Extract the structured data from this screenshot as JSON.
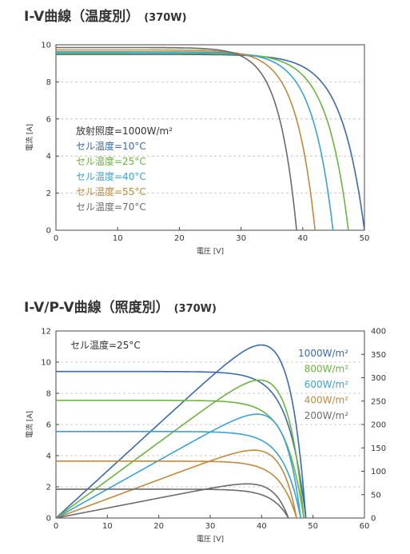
{
  "charts": [
    {
      "title_main": "I-V曲線（温度別）",
      "title_suffix": "(370W)",
      "chart_data": {
        "type": "line",
        "xlabel": "電圧 [V]",
        "ylabel": "電流 [A]",
        "xlim": [
          0,
          50
        ],
        "ylim": [
          0,
          10
        ],
        "xticks": [
          0,
          10,
          20,
          30,
          40,
          50
        ],
        "yticks": [
          0,
          2,
          4,
          6,
          8,
          10
        ],
        "grid": "horizontal-dashed",
        "annotation": "放射照度=1000W/m²",
        "legend_placement": "lower-left",
        "series": [
          {
            "name": "セル温度=10°C",
            "color": "#3a6aa8",
            "isc": 9.48,
            "voc": 50.0
          },
          {
            "name": "セル温度=25°C",
            "color": "#6cb33f",
            "isc": 9.55,
            "voc": 47.4
          },
          {
            "name": "セル温度=40°C",
            "color": "#3aa2d6",
            "isc": 9.62,
            "voc": 44.9
          },
          {
            "name": "セル温度=55°C",
            "color": "#c0893c",
            "isc": 9.72,
            "voc": 42.0
          },
          {
            "name": "セル温度=70°C",
            "color": "#6b6b6b",
            "isc": 9.85,
            "voc": 39.0
          }
        ]
      }
    },
    {
      "title_main": "I-V/P-V曲線（照度別）",
      "title_suffix": "(370W)",
      "chart_data": {
        "type": "line",
        "xlabel": "電圧 [V]",
        "ylabel": "電流 [A]",
        "xlim": [
          0,
          60
        ],
        "ylim": [
          0,
          12
        ],
        "y2lim": [
          0,
          400
        ],
        "xticks": [
          0,
          10,
          20,
          30,
          40,
          50,
          60
        ],
        "yticks": [
          0,
          2,
          4,
          6,
          8,
          10,
          12
        ],
        "y2ticks": [
          0,
          50,
          100,
          150,
          200,
          250,
          300,
          350,
          400
        ],
        "grid": "horizontal-dashed",
        "annotation": "セル温度=25°C",
        "legend_placement": "top-right",
        "series": [
          {
            "name": "1000W/m²",
            "color": "#3a6aa8",
            "isc": 9.4,
            "voc": 48.6,
            "pmax": 370
          },
          {
            "name": "800W/m²",
            "color": "#6cb33f",
            "isc": 7.55,
            "voc": 48.2,
            "pmax": 295
          },
          {
            "name": "600W/m²",
            "color": "#3aa2d6",
            "isc": 5.55,
            "voc": 47.6,
            "pmax": 222
          },
          {
            "name": "400W/m²",
            "color": "#c0893c",
            "isc": 3.65,
            "voc": 46.8,
            "pmax": 145
          },
          {
            "name": "200W/m²",
            "color": "#6b6b6b",
            "isc": 1.85,
            "voc": 45.2,
            "pmax": 73
          }
        ]
      }
    }
  ]
}
